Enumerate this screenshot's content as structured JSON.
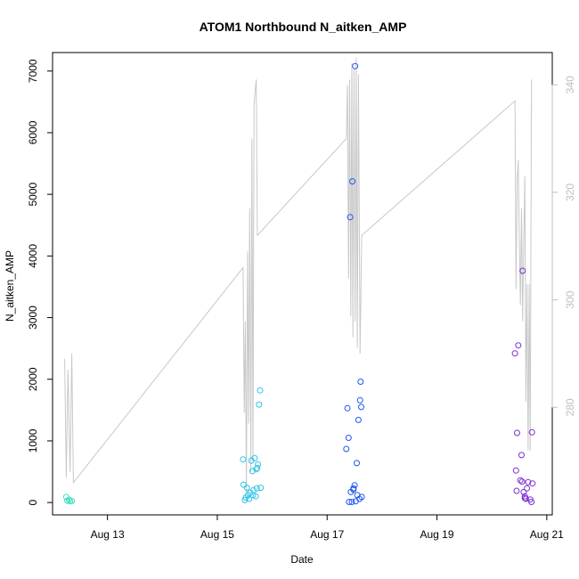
{
  "chart_data": {
    "type": "scatter",
    "title": "ATOM1 Northbound N_aitken_AMP",
    "xlabel": "Date",
    "ylabel": "N_aitken_AMP",
    "x_ticks": [
      "Aug 13",
      "Aug 15",
      "Aug 17",
      "Aug 19",
      "Aug 21"
    ],
    "x_tick_days": [
      13,
      15,
      17,
      19,
      21
    ],
    "xlim": [
      12.0,
      21.1
    ],
    "ylim": [
      -200,
      7300
    ],
    "y_ticks": [
      0,
      1000,
      2000,
      3000,
      4000,
      5000,
      6000,
      7000
    ],
    "y2lim": [
      260,
      346
    ],
    "y2_ticks": [
      280,
      300,
      320,
      340
    ],
    "grid": false,
    "series": [
      {
        "color": "#40E0C0",
        "points": [
          [
            12.25,
            90
          ],
          [
            12.27,
            30
          ],
          [
            12.3,
            45
          ],
          [
            12.32,
            20
          ],
          [
            12.35,
            25
          ]
        ]
      },
      {
        "color": "#2EC4E8",
        "points": [
          [
            15.47,
            700
          ],
          [
            15.48,
            290
          ],
          [
            15.5,
            40
          ],
          [
            15.52,
            80
          ],
          [
            15.54,
            240
          ],
          [
            15.56,
            120
          ],
          [
            15.58,
            60
          ],
          [
            15.6,
            160
          ],
          [
            15.62,
            680
          ],
          [
            15.64,
            510
          ],
          [
            15.66,
            200
          ],
          [
            15.68,
            720
          ],
          [
            15.7,
            100
          ],
          [
            15.71,
            540
          ],
          [
            15.72,
            230
          ],
          [
            15.74,
            620
          ],
          [
            15.76,
            1590
          ],
          [
            15.78,
            1820
          ],
          [
            15.79,
            240
          ],
          [
            15.65,
            120
          ],
          [
            15.73,
            560
          ]
        ]
      },
      {
        "color": "#1E56F0",
        "points": [
          [
            17.35,
            870
          ],
          [
            17.37,
            1530
          ],
          [
            17.39,
            1050
          ],
          [
            17.4,
            10
          ],
          [
            17.42,
            4630
          ],
          [
            17.43,
            170
          ],
          [
            17.45,
            10
          ],
          [
            17.46,
            5210
          ],
          [
            17.48,
            230
          ],
          [
            17.5,
            280
          ],
          [
            17.51,
            7080
          ],
          [
            17.52,
            20
          ],
          [
            17.54,
            640
          ],
          [
            17.55,
            120
          ],
          [
            17.57,
            1340
          ],
          [
            17.59,
            60
          ],
          [
            17.6,
            1660
          ],
          [
            17.61,
            1960
          ],
          [
            17.62,
            1550
          ],
          [
            17.63,
            90
          ],
          [
            17.48,
            210
          ]
        ]
      },
      {
        "color": "#7B2FD0",
        "points": [
          [
            20.42,
            2420
          ],
          [
            20.44,
            520
          ],
          [
            20.45,
            190
          ],
          [
            20.46,
            1130
          ],
          [
            20.48,
            2550
          ],
          [
            20.52,
            360
          ],
          [
            20.54,
            770
          ],
          [
            20.55,
            340
          ],
          [
            20.56,
            3760
          ],
          [
            20.58,
            170
          ],
          [
            20.6,
            100
          ],
          [
            20.62,
            60
          ],
          [
            20.64,
            230
          ],
          [
            20.66,
            330
          ],
          [
            20.7,
            50
          ],
          [
            20.72,
            10
          ],
          [
            20.73,
            1140
          ],
          [
            20.74,
            310
          ],
          [
            20.6,
            70
          ]
        ]
      }
    ],
    "secondary_line": {
      "color": "#c8c8c8",
      "points": [
        [
          12.22,
          289
        ],
        [
          12.25,
          267
        ],
        [
          12.28,
          287
        ],
        [
          12.32,
          268
        ],
        [
          12.35,
          290
        ],
        [
          12.38,
          266
        ],
        [
          15.47,
          306
        ],
        [
          15.49,
          279
        ],
        [
          15.51,
          296
        ],
        [
          15.53,
          264
        ],
        [
          15.55,
          309
        ],
        [
          15.57,
          277
        ],
        [
          15.59,
          317
        ],
        [
          15.61,
          268
        ],
        [
          15.63,
          330
        ],
        [
          15.65,
          270
        ],
        [
          15.67,
          336
        ],
        [
          15.69,
          339
        ],
        [
          15.71,
          341
        ],
        [
          15.73,
          312
        ],
        [
          17.35,
          330
        ],
        [
          17.37,
          340
        ],
        [
          17.39,
          304
        ],
        [
          17.41,
          341
        ],
        [
          17.43,
          297
        ],
        [
          17.45,
          344
        ],
        [
          17.47,
          293
        ],
        [
          17.49,
          343
        ],
        [
          17.51,
          296
        ],
        [
          17.53,
          345
        ],
        [
          17.55,
          291
        ],
        [
          17.57,
          342
        ],
        [
          17.6,
          290
        ],
        [
          17.63,
          312
        ],
        [
          20.42,
          337
        ],
        [
          20.44,
          302
        ],
        [
          20.46,
          322
        ],
        [
          20.48,
          326
        ],
        [
          20.5,
          311
        ],
        [
          20.52,
          299
        ],
        [
          20.54,
          317
        ],
        [
          20.56,
          296
        ],
        [
          20.58,
          310
        ],
        [
          20.6,
          323
        ],
        [
          20.62,
          281
        ],
        [
          20.64,
          303
        ],
        [
          20.66,
          272
        ],
        [
          20.68,
          303
        ],
        [
          20.7,
          272
        ],
        [
          20.72,
          341
        ]
      ]
    }
  }
}
